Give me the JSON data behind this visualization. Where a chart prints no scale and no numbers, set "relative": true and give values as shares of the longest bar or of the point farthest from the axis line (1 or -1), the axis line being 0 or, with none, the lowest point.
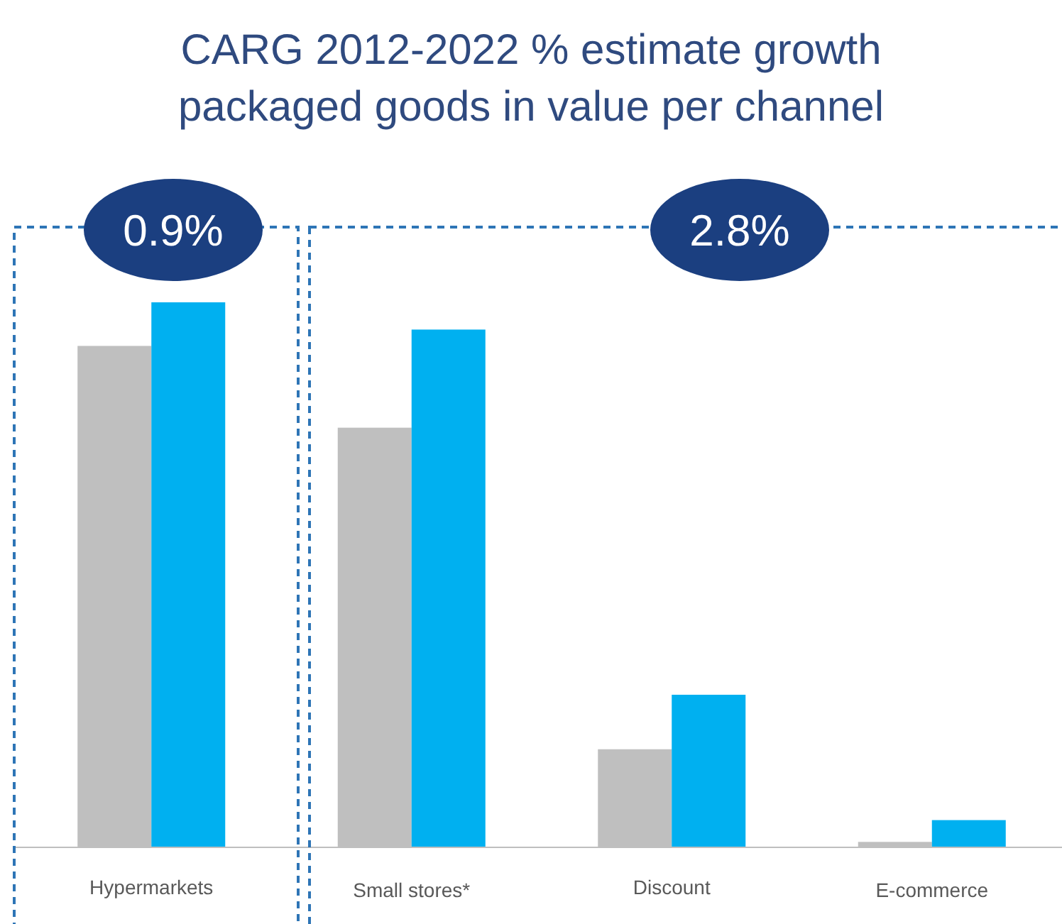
{
  "chart_data": {
    "type": "bar",
    "title": "CARG 2012-2022 % estimate growth packaged goods in value per channel",
    "categories": [
      "Hypermarkets",
      "Small stores*",
      "Discount",
      "E-commerce"
    ],
    "relative": true,
    "series": [
      {
        "color": "#bfbfbf",
        "values": [
          0.92,
          0.77,
          0.18,
          0.01
        ]
      },
      {
        "color": "#00b0f0",
        "values": [
          1,
          0.95,
          0.28,
          0.05
        ]
      }
    ],
    "annotations": [
      "0.9%",
      "2.8%"
    ]
  }
}
